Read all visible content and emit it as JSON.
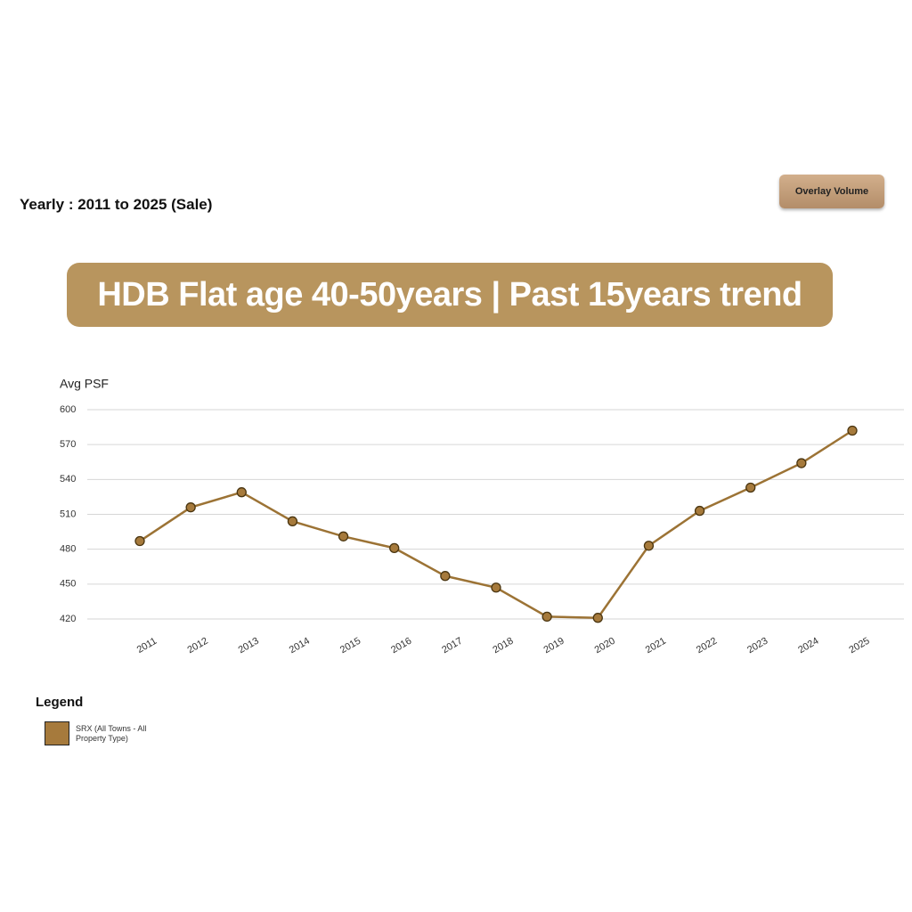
{
  "header": {
    "period": "Yearly : 2011 to 2025 (Sale)",
    "button": "Overlay Volume"
  },
  "banner": "HDB Flat age 40-50years | Past 15years trend",
  "chart_data": {
    "type": "line",
    "y_label": "Avg PSF",
    "categories": [
      "2011",
      "2012",
      "2013",
      "2014",
      "2015",
      "2016",
      "2017",
      "2018",
      "2019",
      "2020",
      "2021",
      "2022",
      "2023",
      "2024",
      "2025"
    ],
    "series": [
      {
        "name": "SRX (All Towns - All Property Type)",
        "color": "#9c7335",
        "values": [
          487,
          516,
          529,
          504,
          491,
          481,
          457,
          447,
          422,
          421,
          483,
          513,
          533,
          554,
          582
        ]
      }
    ],
    "ylim": [
      420,
      600
    ],
    "yticks": [
      420,
      450,
      480,
      510,
      540,
      570,
      600
    ],
    "grid": true,
    "legend_title": "Legend"
  }
}
